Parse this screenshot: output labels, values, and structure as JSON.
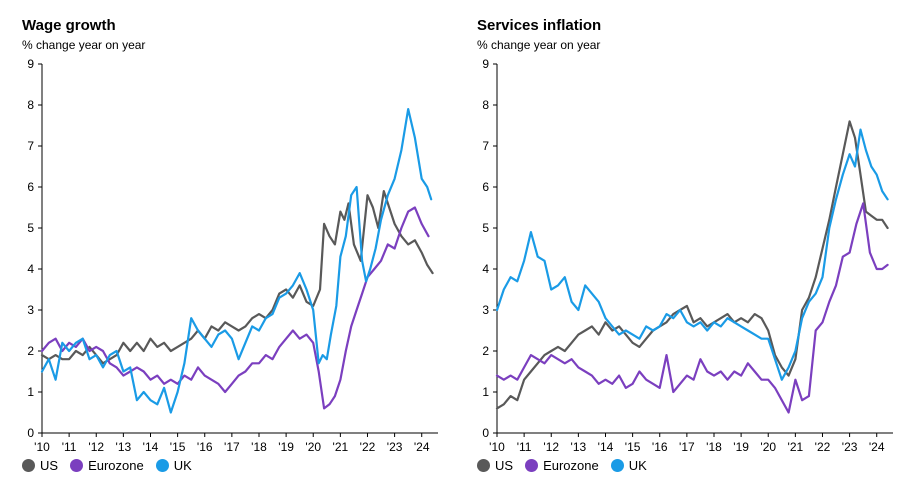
{
  "chart_data": [
    {
      "type": "line",
      "title": "Wage growth",
      "subtitle": "% change year on year",
      "ylim": [
        0,
        9
      ],
      "yticks": [
        0,
        1,
        2,
        3,
        4,
        5,
        6,
        7,
        8,
        9
      ],
      "xlim": [
        2010.0,
        2024.6
      ],
      "xtick_labels": [
        "'10",
        "'11",
        "'12",
        "'13",
        "'14",
        "'15",
        "'16",
        "'17",
        "'18",
        "'19",
        "'20",
        "'21",
        "'22",
        "'23",
        "'24"
      ],
      "grid": false,
      "legend_position": "bottom-left",
      "series": [
        {
          "name": "US",
          "color": "#595959",
          "x": [
            2010.0,
            2010.25,
            2010.5,
            2010.75,
            2011.0,
            2011.25,
            2011.5,
            2011.75,
            2012.0,
            2012.25,
            2012.5,
            2012.75,
            2013.0,
            2013.25,
            2013.5,
            2013.75,
            2014.0,
            2014.25,
            2014.5,
            2014.75,
            2015.0,
            2015.25,
            2015.5,
            2015.75,
            2016.0,
            2016.25,
            2016.5,
            2016.75,
            2017.0,
            2017.25,
            2017.5,
            2017.75,
            2018.0,
            2018.25,
            2018.5,
            2018.75,
            2019.0,
            2019.25,
            2019.5,
            2019.75,
            2020.0,
            2020.25,
            2020.4,
            2020.6,
            2020.8,
            2021.0,
            2021.15,
            2021.3,
            2021.5,
            2021.75,
            2022.0,
            2022.2,
            2022.4,
            2022.6,
            2022.8,
            2023.0,
            2023.25,
            2023.5,
            2023.75,
            2024.0,
            2024.2,
            2024.4
          ],
          "values": [
            1.9,
            1.8,
            1.9,
            1.8,
            1.8,
            2.0,
            1.9,
            2.1,
            1.9,
            1.7,
            1.8,
            1.9,
            2.2,
            2.0,
            2.2,
            2.0,
            2.3,
            2.1,
            2.2,
            2.0,
            2.1,
            2.2,
            2.3,
            2.5,
            2.3,
            2.6,
            2.5,
            2.7,
            2.6,
            2.5,
            2.6,
            2.8,
            2.9,
            2.8,
            3.0,
            3.4,
            3.5,
            3.3,
            3.6,
            3.2,
            3.1,
            3.5,
            5.1,
            4.8,
            4.6,
            5.4,
            5.2,
            5.6,
            4.6,
            4.2,
            5.8,
            5.5,
            5.0,
            5.9,
            5.5,
            5.1,
            4.8,
            4.6,
            4.7,
            4.4,
            4.1,
            3.9
          ]
        },
        {
          "name": "Eurozone",
          "color": "#7b3fbf",
          "x": [
            2010.0,
            2010.25,
            2010.5,
            2010.75,
            2011.0,
            2011.25,
            2011.5,
            2011.75,
            2012.0,
            2012.25,
            2012.5,
            2012.75,
            2013.0,
            2013.25,
            2013.5,
            2013.75,
            2014.0,
            2014.25,
            2014.5,
            2014.75,
            2015.0,
            2015.25,
            2015.5,
            2015.75,
            2016.0,
            2016.25,
            2016.5,
            2016.75,
            2017.0,
            2017.25,
            2017.5,
            2017.75,
            2018.0,
            2018.25,
            2018.5,
            2018.75,
            2019.0,
            2019.25,
            2019.5,
            2019.75,
            2020.0,
            2020.2,
            2020.4,
            2020.6,
            2020.8,
            2021.0,
            2021.2,
            2021.4,
            2021.6,
            2021.8,
            2022.0,
            2022.25,
            2022.5,
            2022.75,
            2023.0,
            2023.25,
            2023.5,
            2023.75,
            2024.0,
            2024.25
          ],
          "values": [
            2.0,
            2.2,
            2.3,
            2.0,
            2.2,
            2.1,
            2.3,
            2.0,
            2.1,
            2.0,
            1.7,
            1.6,
            1.4,
            1.5,
            1.6,
            1.5,
            1.3,
            1.4,
            1.2,
            1.3,
            1.2,
            1.4,
            1.3,
            1.6,
            1.4,
            1.3,
            1.2,
            1.0,
            1.2,
            1.4,
            1.5,
            1.7,
            1.7,
            1.9,
            1.8,
            2.1,
            2.3,
            2.5,
            2.3,
            2.4,
            2.2,
            1.5,
            0.6,
            0.7,
            0.9,
            1.3,
            2.0,
            2.6,
            3.0,
            3.4,
            3.8,
            4.0,
            4.2,
            4.6,
            4.5,
            5.0,
            5.4,
            5.5,
            5.1,
            4.8
          ]
        },
        {
          "name": "UK",
          "color": "#1a9be6",
          "x": [
            2010.0,
            2010.25,
            2010.5,
            2010.75,
            2011.0,
            2011.25,
            2011.5,
            2011.75,
            2012.0,
            2012.25,
            2012.5,
            2012.75,
            2013.0,
            2013.25,
            2013.5,
            2013.75,
            2014.0,
            2014.25,
            2014.5,
            2014.75,
            2015.0,
            2015.25,
            2015.5,
            2015.75,
            2016.0,
            2016.25,
            2016.5,
            2016.75,
            2017.0,
            2017.25,
            2017.5,
            2017.75,
            2018.0,
            2018.25,
            2018.5,
            2018.75,
            2019.0,
            2019.25,
            2019.5,
            2019.75,
            2020.0,
            2020.2,
            2020.35,
            2020.5,
            2020.65,
            2020.85,
            2021.0,
            2021.2,
            2021.4,
            2021.6,
            2021.8,
            2021.95,
            2022.1,
            2022.3,
            2022.5,
            2022.75,
            2023.0,
            2023.25,
            2023.5,
            2023.75,
            2024.0,
            2024.2,
            2024.35
          ],
          "values": [
            1.5,
            1.8,
            1.3,
            2.2,
            2.0,
            2.2,
            2.3,
            1.8,
            1.9,
            1.6,
            1.9,
            2.0,
            1.5,
            1.6,
            0.8,
            1.0,
            0.8,
            0.7,
            1.1,
            0.5,
            1.0,
            1.7,
            2.8,
            2.5,
            2.3,
            2.1,
            2.4,
            2.5,
            2.3,
            1.8,
            2.2,
            2.6,
            2.5,
            2.8,
            2.9,
            3.3,
            3.4,
            3.6,
            3.9,
            3.5,
            3.0,
            1.7,
            1.9,
            1.8,
            2.4,
            3.1,
            4.3,
            4.8,
            5.8,
            6.0,
            4.2,
            3.7,
            4.0,
            4.5,
            5.2,
            5.8,
            6.2,
            6.9,
            7.9,
            7.2,
            6.2,
            6.0,
            5.7
          ]
        }
      ]
    },
    {
      "type": "line",
      "title": "Services inflation",
      "subtitle": "% change year on year",
      "ylim": [
        0,
        9
      ],
      "yticks": [
        0,
        1,
        2,
        3,
        4,
        5,
        6,
        7,
        8,
        9
      ],
      "xlim": [
        2010.0,
        2024.6
      ],
      "xtick_labels": [
        "'10",
        "'11",
        "'12",
        "'13",
        "'14",
        "'15",
        "'16",
        "'17",
        "'18",
        "'19",
        "'20",
        "'21",
        "'22",
        "'23",
        "'24"
      ],
      "grid": false,
      "legend_position": "bottom-left",
      "series": [
        {
          "name": "US",
          "color": "#595959",
          "x": [
            2010.0,
            2010.25,
            2010.5,
            2010.75,
            2011.0,
            2011.25,
            2011.5,
            2011.75,
            2012.0,
            2012.25,
            2012.5,
            2012.75,
            2013.0,
            2013.25,
            2013.5,
            2013.75,
            2014.0,
            2014.25,
            2014.5,
            2014.75,
            2015.0,
            2015.25,
            2015.5,
            2015.75,
            2016.0,
            2016.25,
            2016.5,
            2016.75,
            2017.0,
            2017.25,
            2017.5,
            2017.75,
            2018.0,
            2018.25,
            2018.5,
            2018.75,
            2019.0,
            2019.25,
            2019.5,
            2019.75,
            2020.0,
            2020.25,
            2020.5,
            2020.75,
            2021.0,
            2021.25,
            2021.5,
            2021.75,
            2022.0,
            2022.25,
            2022.5,
            2022.75,
            2023.0,
            2023.2,
            2023.4,
            2023.6,
            2023.8,
            2024.0,
            2024.2,
            2024.4
          ],
          "values": [
            0.6,
            0.7,
            0.9,
            0.8,
            1.3,
            1.5,
            1.7,
            1.9,
            2.0,
            2.1,
            2.0,
            2.2,
            2.4,
            2.5,
            2.6,
            2.4,
            2.7,
            2.5,
            2.6,
            2.4,
            2.2,
            2.1,
            2.3,
            2.5,
            2.6,
            2.7,
            2.9,
            3.0,
            3.1,
            2.7,
            2.8,
            2.6,
            2.7,
            2.8,
            2.9,
            2.7,
            2.8,
            2.7,
            2.9,
            2.8,
            2.5,
            1.9,
            1.6,
            1.4,
            1.8,
            3.0,
            3.3,
            3.8,
            4.5,
            5.2,
            6.0,
            6.8,
            7.6,
            7.2,
            6.3,
            5.4,
            5.3,
            5.2,
            5.2,
            5.0
          ]
        },
        {
          "name": "Eurozone",
          "color": "#7b3fbf",
          "x": [
            2010.0,
            2010.25,
            2010.5,
            2010.75,
            2011.0,
            2011.25,
            2011.5,
            2011.75,
            2012.0,
            2012.25,
            2012.5,
            2012.75,
            2013.0,
            2013.25,
            2013.5,
            2013.75,
            2014.0,
            2014.25,
            2014.5,
            2014.75,
            2015.0,
            2015.25,
            2015.5,
            2015.75,
            2016.0,
            2016.25,
            2016.5,
            2016.75,
            2017.0,
            2017.25,
            2017.5,
            2017.75,
            2018.0,
            2018.25,
            2018.5,
            2018.75,
            2019.0,
            2019.25,
            2019.5,
            2019.75,
            2020.0,
            2020.25,
            2020.5,
            2020.75,
            2021.0,
            2021.25,
            2021.5,
            2021.75,
            2022.0,
            2022.25,
            2022.5,
            2022.75,
            2023.0,
            2023.25,
            2023.5,
            2023.75,
            2024.0,
            2024.2,
            2024.4
          ],
          "values": [
            1.4,
            1.3,
            1.4,
            1.3,
            1.6,
            1.9,
            1.8,
            1.7,
            1.9,
            1.8,
            1.7,
            1.8,
            1.6,
            1.5,
            1.4,
            1.2,
            1.3,
            1.2,
            1.4,
            1.1,
            1.2,
            1.5,
            1.3,
            1.2,
            1.1,
            1.9,
            1.0,
            1.2,
            1.4,
            1.3,
            1.8,
            1.5,
            1.4,
            1.5,
            1.3,
            1.5,
            1.4,
            1.7,
            1.5,
            1.3,
            1.3,
            1.1,
            0.8,
            0.5,
            1.3,
            0.8,
            0.9,
            2.5,
            2.7,
            3.2,
            3.6,
            4.3,
            4.4,
            5.1,
            5.6,
            4.4,
            4.0,
            4.0,
            4.1
          ]
        },
        {
          "name": "UK",
          "color": "#1a9be6",
          "x": [
            2010.0,
            2010.25,
            2010.5,
            2010.75,
            2011.0,
            2011.25,
            2011.5,
            2011.75,
            2012.0,
            2012.25,
            2012.5,
            2012.75,
            2013.0,
            2013.25,
            2013.5,
            2013.75,
            2014.0,
            2014.25,
            2014.5,
            2014.75,
            2015.0,
            2015.25,
            2015.5,
            2015.75,
            2016.0,
            2016.25,
            2016.5,
            2016.75,
            2017.0,
            2017.25,
            2017.5,
            2017.75,
            2018.0,
            2018.25,
            2018.5,
            2018.75,
            2019.0,
            2019.25,
            2019.5,
            2019.75,
            2020.0,
            2020.25,
            2020.5,
            2020.75,
            2021.0,
            2021.25,
            2021.5,
            2021.75,
            2022.0,
            2022.25,
            2022.5,
            2022.75,
            2023.0,
            2023.2,
            2023.4,
            2023.6,
            2023.8,
            2024.0,
            2024.2,
            2024.4
          ],
          "values": [
            3.0,
            3.5,
            3.8,
            3.7,
            4.2,
            4.9,
            4.3,
            4.2,
            3.5,
            3.6,
            3.8,
            3.2,
            3.0,
            3.6,
            3.4,
            3.2,
            2.8,
            2.6,
            2.4,
            2.5,
            2.4,
            2.3,
            2.6,
            2.5,
            2.6,
            2.9,
            2.8,
            3.0,
            2.7,
            2.6,
            2.7,
            2.5,
            2.7,
            2.6,
            2.8,
            2.7,
            2.6,
            2.5,
            2.4,
            2.3,
            2.3,
            1.8,
            1.3,
            1.6,
            2.0,
            2.8,
            3.2,
            3.4,
            3.8,
            5.0,
            5.7,
            6.3,
            6.8,
            6.5,
            7.4,
            6.9,
            6.5,
            6.3,
            5.9,
            5.7
          ]
        }
      ]
    }
  ]
}
